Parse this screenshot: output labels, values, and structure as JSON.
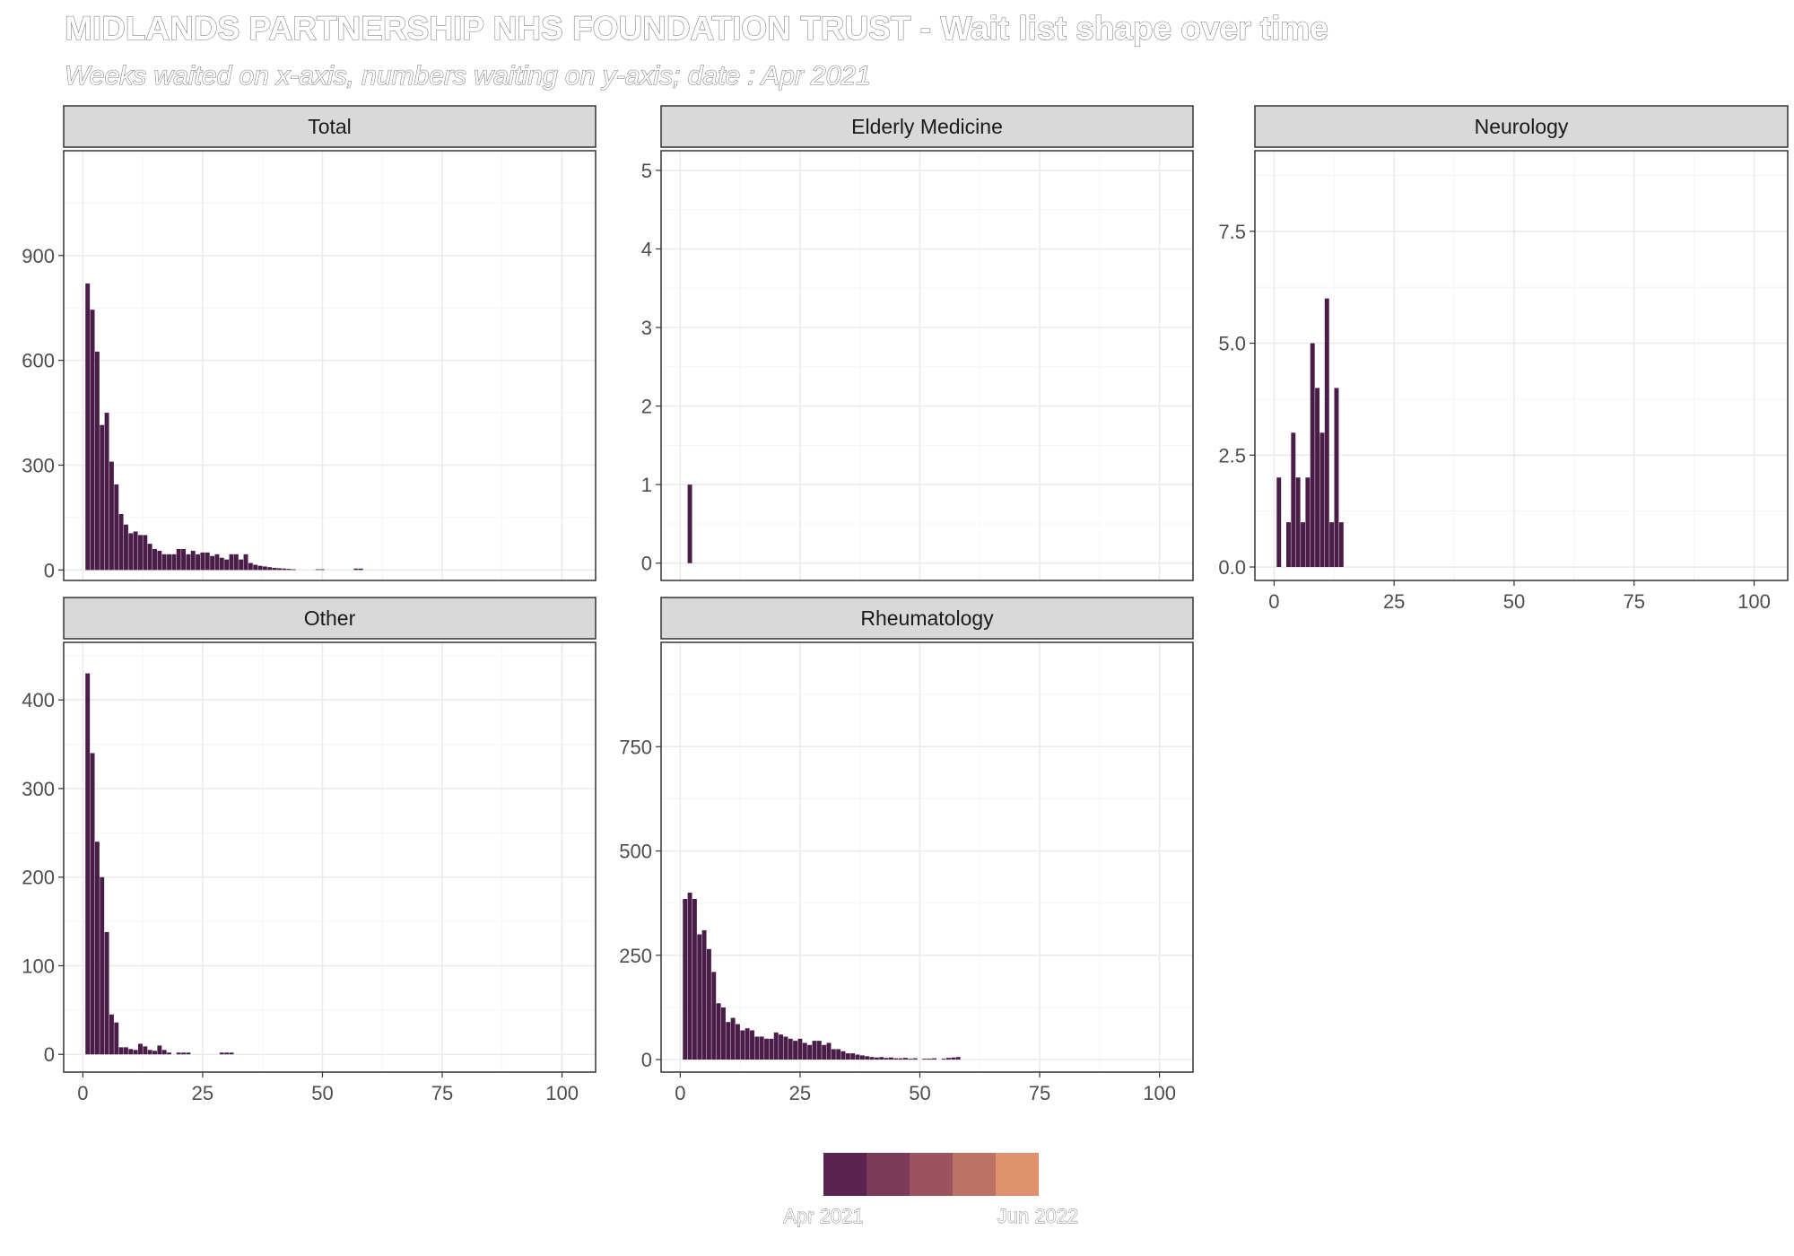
{
  "page": {
    "title": "MIDLANDS PARTNERSHIP NHS FOUNDATION TRUST - Wait list shape over time",
    "subtitle": "Weeks waited on x-axis, numbers waiting on y-axis; date : Apr 2021"
  },
  "legend": {
    "colors": [
      "#5b2350",
      "#7c3a59",
      "#9b5360",
      "#bd7266",
      "#e0916e"
    ],
    "labels": [
      "Apr 2021",
      "Jun 2022"
    ]
  },
  "chart_data": {
    "type": "bar",
    "bar_color": "#4a1d48",
    "xlim": [
      -4,
      107
    ],
    "xticks": [
      0,
      25,
      50,
      75,
      100
    ],
    "panels": [
      {
        "title": "Total",
        "ylim": [
          -30,
          1200
        ],
        "yticks": [
          0,
          300,
          600,
          900
        ],
        "y_tick_labels": [
          "0",
          "300",
          "600",
          "900"
        ],
        "x": [
          1,
          2,
          3,
          4,
          5,
          6,
          7,
          8,
          9,
          10,
          11,
          12,
          13,
          14,
          15,
          16,
          17,
          18,
          19,
          20,
          21,
          22,
          23,
          24,
          25,
          26,
          27,
          28,
          29,
          30,
          31,
          32,
          33,
          34,
          35,
          36,
          37,
          38,
          39,
          40,
          41,
          42,
          43,
          44,
          49,
          50,
          57,
          58
        ],
        "values": [
          820,
          745,
          625,
          415,
          450,
          310,
          245,
          160,
          130,
          105,
          110,
          100,
          100,
          75,
          60,
          55,
          45,
          45,
          45,
          60,
          60,
          45,
          55,
          45,
          50,
          50,
          40,
          45,
          35,
          30,
          45,
          45,
          30,
          45,
          20,
          15,
          12,
          10,
          8,
          6,
          5,
          4,
          3,
          2,
          2,
          2,
          4,
          4
        ]
      },
      {
        "title": "Elderly Medicine",
        "ylim": [
          -0.22,
          5.25
        ],
        "yticks": [
          0,
          1,
          2,
          3,
          4,
          5
        ],
        "y_tick_labels": [
          "0",
          "1",
          "2",
          "3",
          "4",
          "5"
        ],
        "x": [
          2
        ],
        "values": [
          1
        ]
      },
      {
        "title": "Neurology",
        "ylim": [
          -0.3,
          9.3
        ],
        "yticks": [
          0,
          2.5,
          5,
          7.5
        ],
        "y_tick_labels": [
          "0.0",
          "2.5",
          "5.0",
          "7.5"
        ],
        "x_tick_labels": [
          "0",
          "25",
          "50",
          "75",
          "100"
        ],
        "x": [
          1,
          3,
          4,
          5,
          6,
          7,
          8,
          9,
          10,
          11,
          12,
          13,
          14
        ],
        "values": [
          2,
          1,
          3,
          2,
          1,
          2,
          5,
          4,
          3,
          6,
          1,
          4,
          1
        ]
      },
      {
        "title": "Other",
        "ylim": [
          -20,
          465
        ],
        "yticks": [
          0,
          100,
          200,
          300,
          400
        ],
        "y_tick_labels": [
          "0",
          "100",
          "200",
          "300",
          "400"
        ],
        "x_tick_labels": [
          "0",
          "25",
          "50",
          "75",
          "100"
        ],
        "x": [
          1,
          2,
          3,
          4,
          5,
          6,
          7,
          8,
          9,
          10,
          11,
          12,
          13,
          14,
          15,
          16,
          17,
          18,
          20,
          21,
          22,
          29,
          30,
          31
        ],
        "values": [
          430,
          340,
          240,
          200,
          138,
          45,
          36,
          8,
          8,
          6,
          5,
          12,
          9,
          5,
          4,
          10,
          5,
          2,
          2,
          2,
          2,
          2,
          2,
          2
        ]
      },
      {
        "title": "Rheumatology",
        "ylim": [
          -30,
          1000
        ],
        "yticks": [
          0,
          250,
          500,
          750
        ],
        "y_tick_labels": [
          "0",
          "250",
          "500",
          "750"
        ],
        "x_tick_labels": [
          "0",
          "25",
          "50",
          "75",
          "100"
        ],
        "x": [
          1,
          2,
          3,
          4,
          5,
          6,
          7,
          8,
          9,
          10,
          11,
          12,
          13,
          14,
          15,
          16,
          17,
          18,
          19,
          20,
          21,
          22,
          23,
          24,
          25,
          26,
          27,
          28,
          29,
          30,
          31,
          32,
          33,
          34,
          35,
          36,
          37,
          38,
          39,
          40,
          41,
          42,
          43,
          44,
          45,
          46,
          47,
          48,
          49,
          51,
          52,
          53,
          55,
          56,
          57,
          58
        ],
        "values": [
          385,
          400,
          385,
          300,
          310,
          265,
          210,
          135,
          125,
          90,
          100,
          85,
          70,
          75,
          70,
          55,
          55,
          50,
          50,
          65,
          60,
          55,
          50,
          45,
          50,
          40,
          35,
          45,
          45,
          35,
          40,
          25,
          25,
          20,
          15,
          15,
          12,
          10,
          8,
          6,
          5,
          6,
          4,
          5,
          3,
          3,
          4,
          2,
          3,
          2,
          2,
          3,
          2,
          4,
          5,
          6
        ]
      }
    ]
  }
}
